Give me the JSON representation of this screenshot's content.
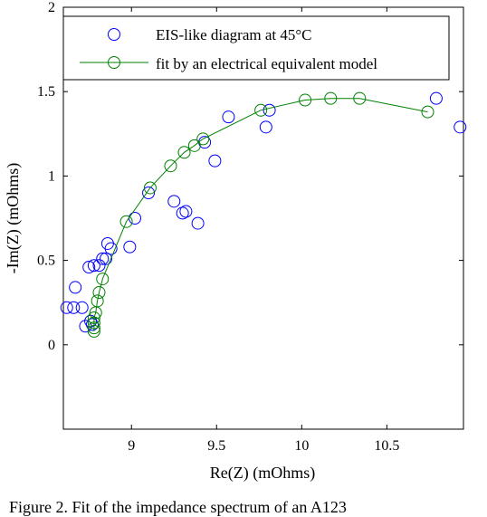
{
  "chart_data": {
    "type": "scatter",
    "title": "",
    "xlabel": "Re(Z) (mOhms)",
    "ylabel": "-Im(Z) (mOhms)",
    "xlim": [
      8.6,
      10.95
    ],
    "ylim": [
      -0.5,
      2.0
    ],
    "xticks": [
      9,
      9.5,
      10,
      10.5
    ],
    "xtick_labels": [
      "9",
      "9.5",
      "10",
      "10.5"
    ],
    "yticks": [
      0,
      0.5,
      1,
      1.5,
      2
    ],
    "ytick_labels": [
      "0",
      "0.5",
      "1",
      "1.5",
      "2"
    ],
    "grid": false,
    "legend_position": "top",
    "series": [
      {
        "name": "EIS-like diagram at 45°C",
        "color": "#0000ff",
        "marker": "open-circle",
        "line": false,
        "points": [
          [
            8.62,
            0.22
          ],
          [
            8.66,
            0.22
          ],
          [
            8.67,
            0.34
          ],
          [
            8.71,
            0.22
          ],
          [
            8.73,
            0.11
          ],
          [
            8.76,
            0.14
          ],
          [
            8.77,
            0.12
          ],
          [
            8.75,
            0.46
          ],
          [
            8.78,
            0.47
          ],
          [
            8.81,
            0.47
          ],
          [
            8.83,
            0.51
          ],
          [
            8.85,
            0.51
          ],
          [
            8.86,
            0.6
          ],
          [
            8.88,
            0.57
          ],
          [
            8.99,
            0.58
          ],
          [
            9.02,
            0.75
          ],
          [
            9.1,
            0.9
          ],
          [
            9.25,
            0.85
          ],
          [
            9.3,
            0.78
          ],
          [
            9.32,
            0.79
          ],
          [
            9.39,
            0.72
          ],
          [
            9.43,
            1.2
          ],
          [
            9.49,
            1.09
          ],
          [
            9.57,
            1.35
          ],
          [
            9.79,
            1.29
          ],
          [
            9.81,
            1.39
          ],
          [
            10.79,
            1.46
          ],
          [
            10.93,
            1.29
          ]
        ]
      },
      {
        "name": "fit by an electrical equivalent model",
        "color": "#008000",
        "marker": "open-circle",
        "line": true,
        "points": [
          [
            8.78,
            0.08
          ],
          [
            8.78,
            0.1
          ],
          [
            8.78,
            0.13
          ],
          [
            8.78,
            0.16
          ],
          [
            8.79,
            0.19
          ],
          [
            8.8,
            0.26
          ],
          [
            8.81,
            0.31
          ],
          [
            8.83,
            0.39
          ],
          [
            8.97,
            0.73
          ],
          [
            9.11,
            0.93
          ],
          [
            9.23,
            1.06
          ],
          [
            9.31,
            1.14
          ],
          [
            9.37,
            1.18
          ],
          [
            9.42,
            1.22
          ],
          [
            9.76,
            1.39
          ],
          [
            10.02,
            1.45
          ],
          [
            10.17,
            1.46
          ],
          [
            10.34,
            1.46
          ],
          [
            10.74,
            1.38
          ]
        ]
      }
    ]
  },
  "caption": "Figure 2. Fit of the impedance spectrum of an A123"
}
